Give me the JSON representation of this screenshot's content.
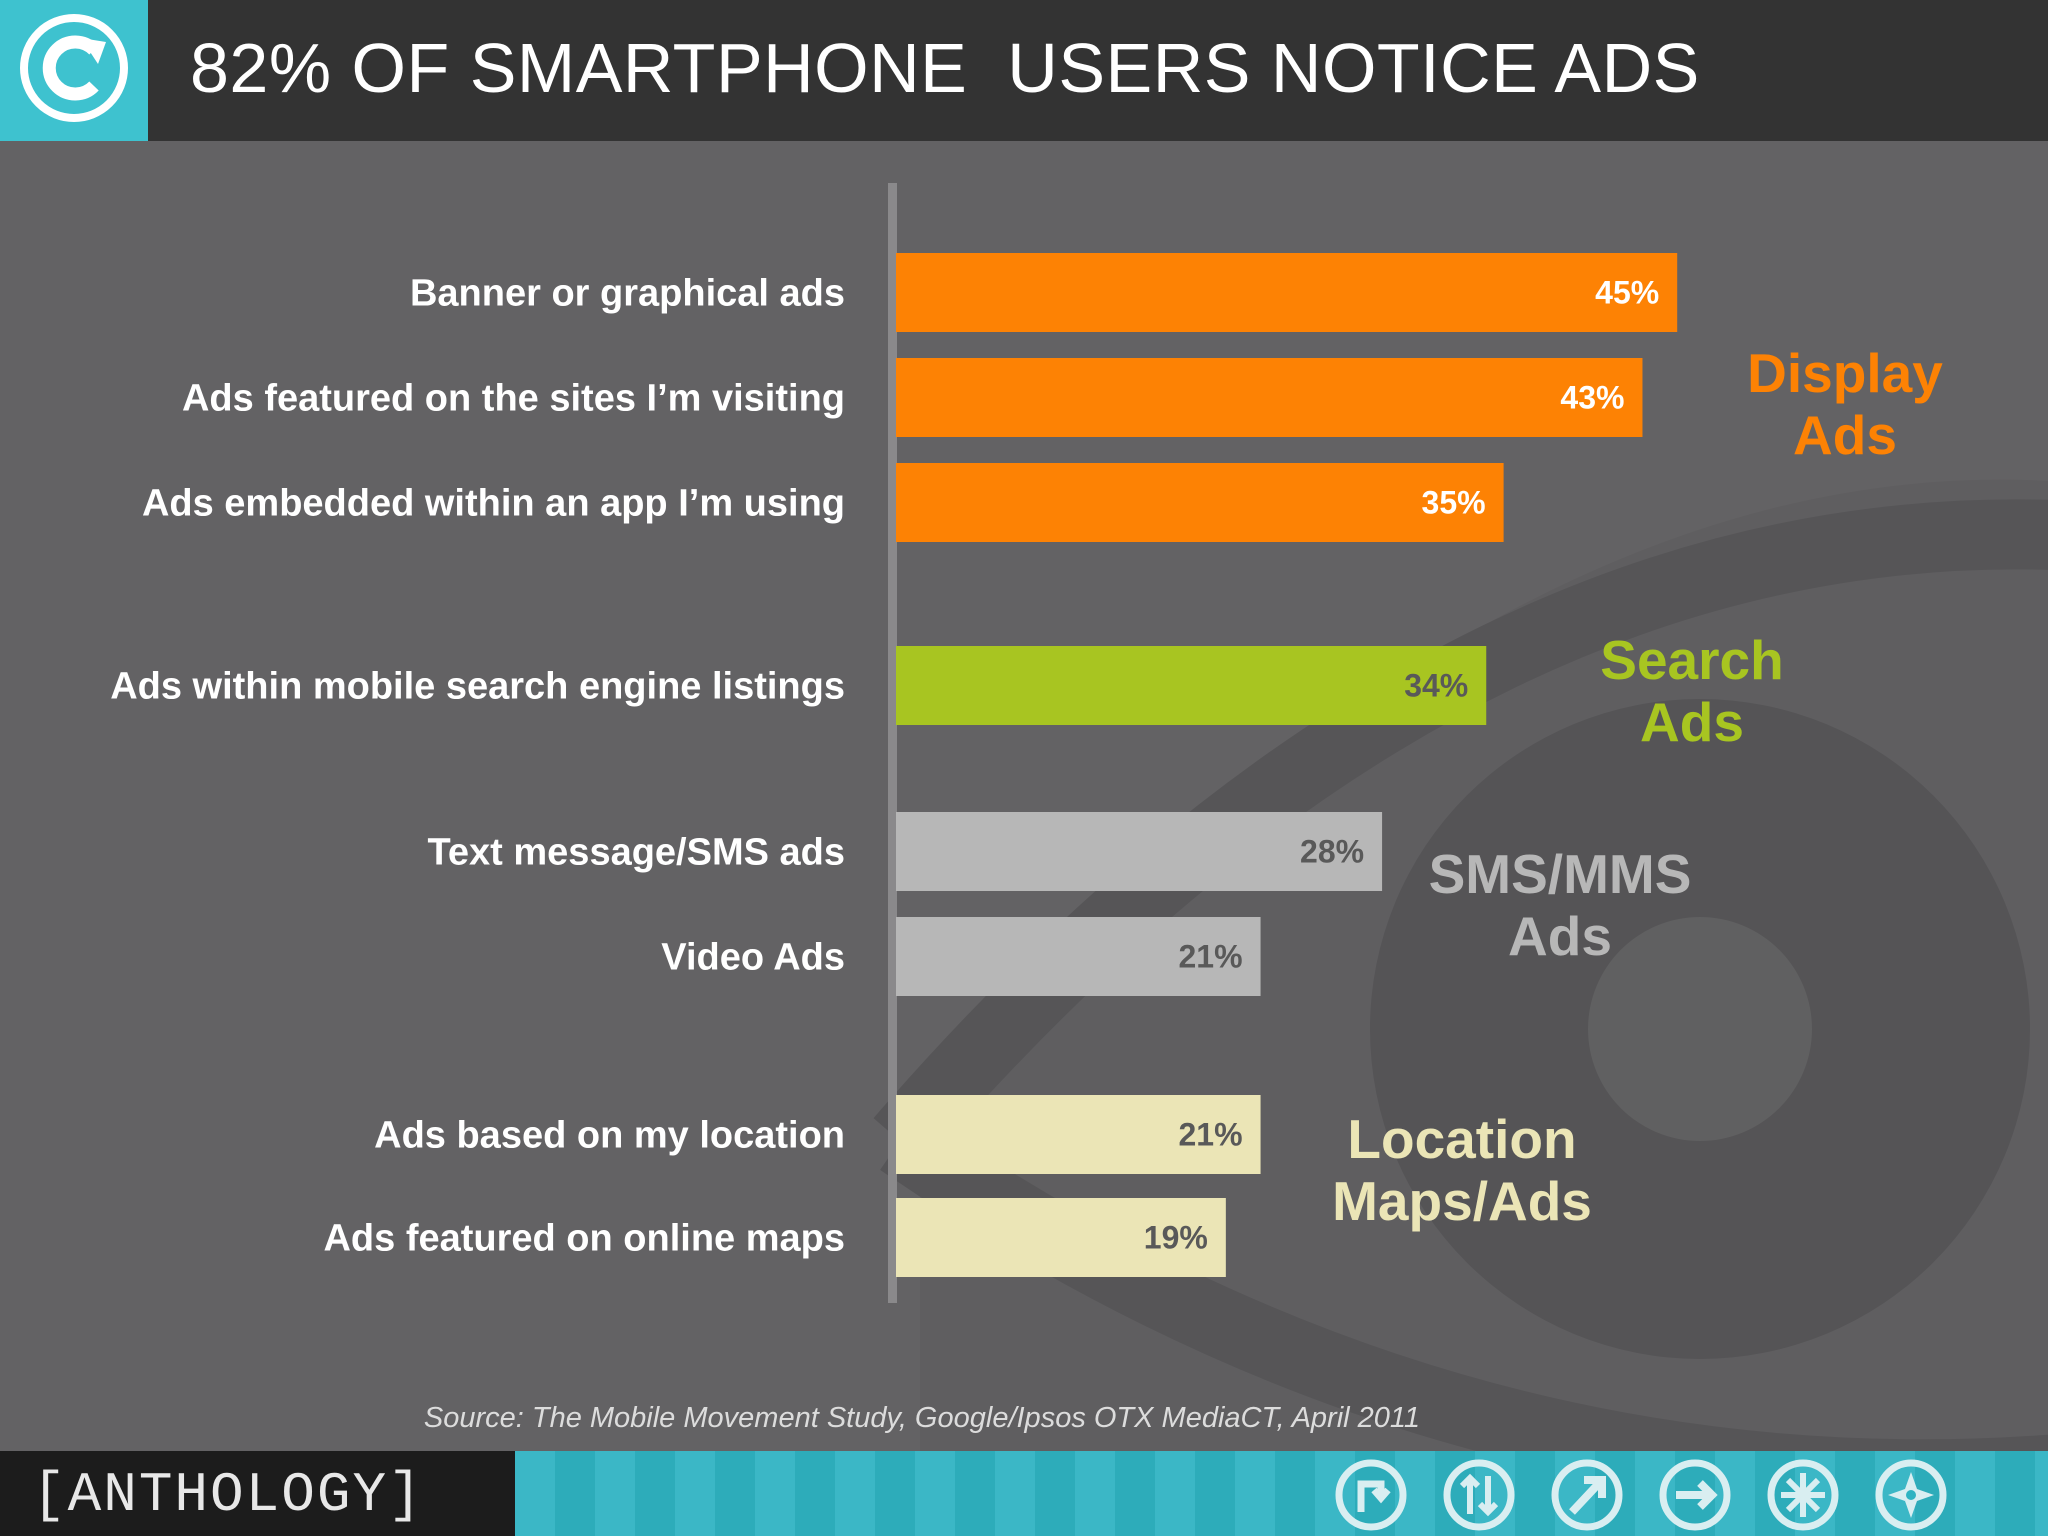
{
  "title": "82% OF SMARTPHONE  USERS NOTICE ADS",
  "logo_icon": "copyright-arrow-icon",
  "source": "Source: The Mobile Movement Study, Google/Ipsos OTX MediaCT, April 2011",
  "brand": "[ANTHOLOGY]",
  "nav_icons": [
    "turn-arrow-icon",
    "up-down-arrows-icon",
    "diagonal-arrow-icon",
    "right-arrow-icon",
    "asterisk-burst-icon",
    "compass-icon"
  ],
  "colors": {
    "display": "#fd8204",
    "search": "#a8c521",
    "sms": "#b7b7b7",
    "location": "#ebe5b6",
    "background": "#636264",
    "header": "#333333",
    "accent": "#3ec2cf"
  },
  "chart_data": {
    "type": "bar",
    "orientation": "horizontal",
    "title": "",
    "xlabel": "",
    "ylabel": "",
    "grid": false,
    "xlim": [
      0,
      45
    ],
    "categories": [
      "Banner or graphical ads",
      "Ads featured on the sites I’m visiting",
      "Ads embedded within an app I’m using",
      "Ads within mobile search engine listings",
      "Text message/SMS ads",
      "Video Ads",
      "Ads based on my location",
      "Ads featured on online maps"
    ],
    "values": [
      45,
      43,
      35,
      34,
      28,
      21,
      21,
      19
    ],
    "value_labels": [
      "45%",
      "43%",
      "35%",
      "34%",
      "28%",
      "21%",
      "21%",
      "19%"
    ],
    "groups": [
      {
        "label_lines": [
          "Display",
          "Ads"
        ],
        "color": "#fd8204",
        "items": [
          0,
          1,
          2
        ]
      },
      {
        "label_lines": [
          "Search",
          "Ads"
        ],
        "color": "#a8c521",
        "items": [
          3
        ]
      },
      {
        "label_lines": [
          "SMS/MMS",
          "Ads"
        ],
        "color": "#b7b7b7",
        "items": [
          4,
          5
        ]
      },
      {
        "label_lines": [
          "Location",
          "Maps/Ads"
        ],
        "color": "#ebe5b6",
        "items": [
          6,
          7
        ]
      }
    ]
  }
}
